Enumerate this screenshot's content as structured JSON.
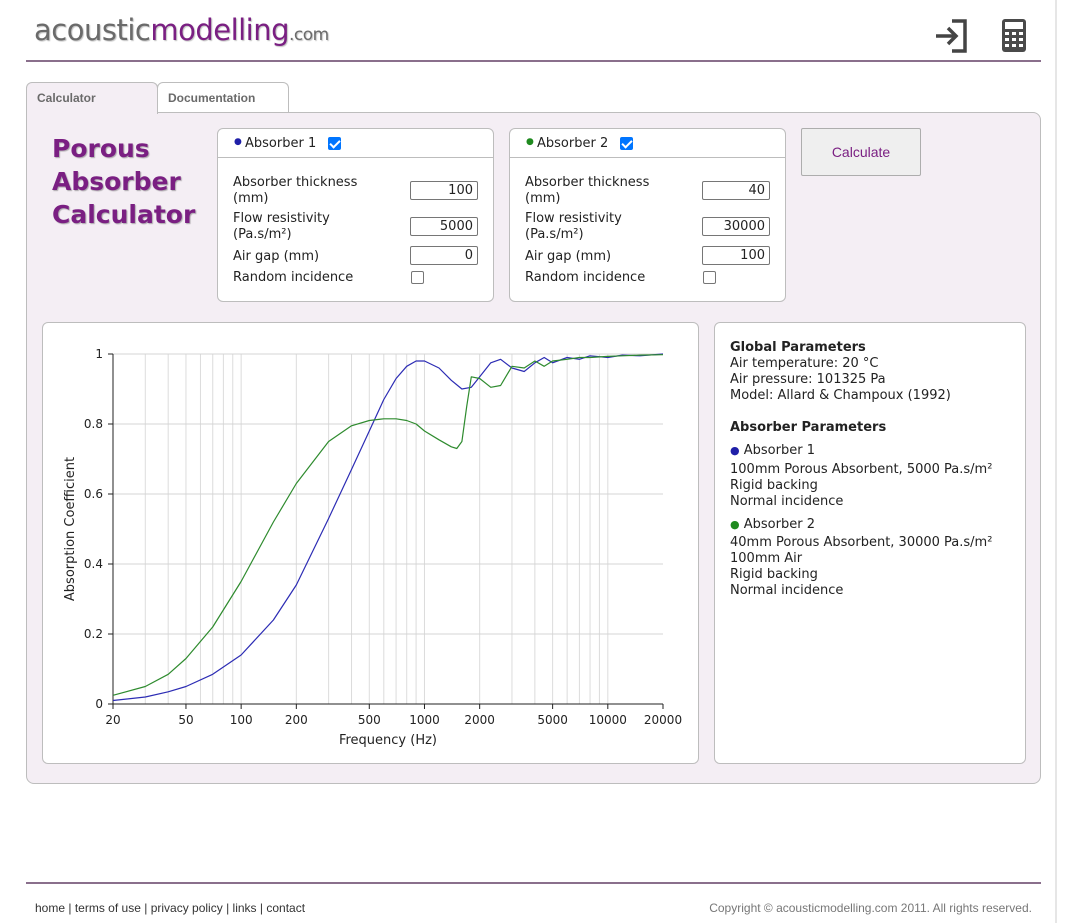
{
  "header": {
    "logo": {
      "part1": "acoustic",
      "part2": "modelling",
      "part3": ".com"
    },
    "icons": [
      "login-icon",
      "calculator-icon"
    ]
  },
  "tabs": [
    {
      "label": "Calculator",
      "active": true
    },
    {
      "label": "Documentation",
      "active": false
    }
  ],
  "page_title": [
    "Porous",
    "Absorber",
    "Calculator"
  ],
  "absorber1": {
    "name": "Absorber 1",
    "color": "#1f1fa8",
    "enabled": true,
    "thickness_label": [
      "Absorber thickness",
      "(mm)"
    ],
    "thickness": "100",
    "flow_label": [
      "Flow resistivity",
      "(Pa.s/m²)"
    ],
    "flow": "5000",
    "airgap_label": "Air gap (mm)",
    "airgap": "0",
    "random_label": "Random incidence",
    "random": false
  },
  "absorber2": {
    "name": "Absorber 2",
    "color": "#1f8a1f",
    "enabled": true,
    "thickness_label": [
      "Absorber thickness",
      "(mm)"
    ],
    "thickness": "40",
    "flow_label": [
      "Flow resistivity",
      "(Pa.s/m²)"
    ],
    "flow": "30000",
    "airgap_label": "Air gap (mm)",
    "airgap": "100",
    "random_label": "Random incidence",
    "random": false
  },
  "calculate_label": "Calculate",
  "chart_data": {
    "type": "line",
    "xlabel": "Frequency (Hz)",
    "ylabel": "Absorption Coefficient",
    "xscale": "log",
    "xlim": [
      20,
      20000
    ],
    "ylim": [
      0,
      1
    ],
    "xticks": [
      20,
      50,
      100,
      200,
      500,
      1000,
      2000,
      5000,
      10000,
      20000
    ],
    "xtick_labels": [
      "20",
      "50",
      "100",
      "200",
      "500",
      "1000",
      "2000",
      "5000",
      "10000",
      "20000"
    ],
    "yticks": [
      0,
      0.2,
      0.4,
      0.6,
      0.8,
      1
    ],
    "ytick_labels": [
      "0",
      "0.2",
      "0.4",
      "0.6",
      "0.8",
      "1"
    ],
    "grid": true,
    "series": [
      {
        "color": "#2c2cb4",
        "x": [
          20,
          30,
          40,
          50,
          70,
          100,
          150,
          200,
          300,
          400,
          500,
          600,
          700,
          800,
          900,
          1000,
          1200,
          1400,
          1600,
          1800,
          2000,
          2300,
          2600,
          3000,
          3500,
          4000,
          4500,
          5000,
          6000,
          7000,
          8000,
          10000,
          12000,
          15000,
          20000
        ],
        "y": [
          0.01,
          0.02,
          0.035,
          0.05,
          0.085,
          0.14,
          0.24,
          0.34,
          0.53,
          0.67,
          0.78,
          0.87,
          0.93,
          0.965,
          0.98,
          0.98,
          0.96,
          0.925,
          0.9,
          0.905,
          0.935,
          0.975,
          0.985,
          0.96,
          0.95,
          0.975,
          0.99,
          0.975,
          0.99,
          0.985,
          0.995,
          0.99,
          0.997,
          0.995,
          1.0
        ]
      },
      {
        "color": "#2e8b2e",
        "x": [
          20,
          30,
          40,
          50,
          70,
          100,
          150,
          200,
          300,
          400,
          500,
          600,
          700,
          800,
          900,
          1000,
          1200,
          1400,
          1500,
          1600,
          1700,
          1800,
          2000,
          2300,
          2600,
          3000,
          3500,
          4000,
          4500,
          5000,
          6000,
          7000,
          8000,
          10000,
          12000,
          15000,
          20000
        ],
        "y": [
          0.025,
          0.05,
          0.085,
          0.13,
          0.22,
          0.35,
          0.52,
          0.63,
          0.75,
          0.795,
          0.81,
          0.815,
          0.815,
          0.81,
          0.8,
          0.78,
          0.755,
          0.735,
          0.73,
          0.75,
          0.85,
          0.935,
          0.93,
          0.905,
          0.91,
          0.965,
          0.96,
          0.98,
          0.965,
          0.98,
          0.985,
          0.99,
          0.99,
          0.993,
          0.995,
          0.997,
          0.998
        ]
      }
    ]
  },
  "info": {
    "global_title": "Global Parameters",
    "air_temp": "Air temperature: 20 °C",
    "air_pressure": "Air pressure: 101325 Pa",
    "model": "Model: Allard & Champoux (1992)",
    "absorber_title": "Absorber Parameters",
    "abs1_name": "Absorber 1",
    "abs1_line1": "100mm Porous Absorbent, 5000 Pa.s/m²",
    "abs1_line2": "Rigid backing",
    "abs1_line3": "Normal incidence",
    "abs2_name": "Absorber 2",
    "abs2_line1": "40mm Porous Absorbent, 30000 Pa.s/m²",
    "abs2_line2": "100mm Air",
    "abs2_line3": "Rigid backing",
    "abs2_line4": "Normal incidence"
  },
  "footer": {
    "links": [
      "home",
      "terms of use",
      "privacy policy",
      "links",
      "contact"
    ],
    "separator": "|",
    "copyright": "Copyright © acousticmodelling.com 2011. All rights reserved."
  }
}
